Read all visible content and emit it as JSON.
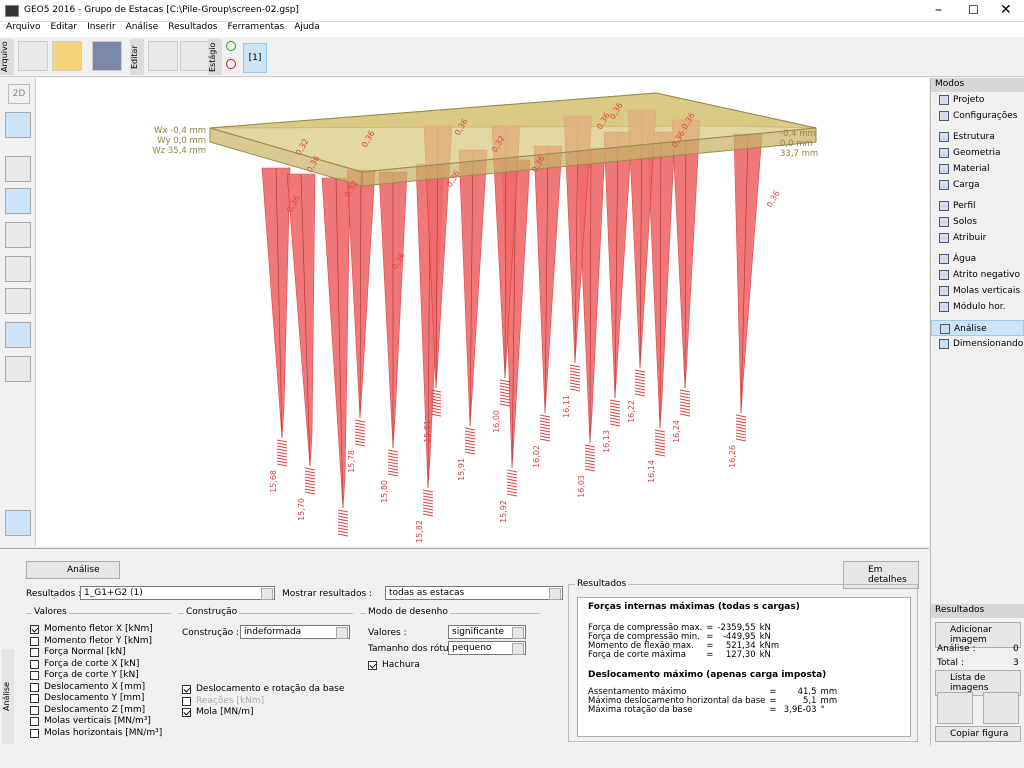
{
  "window": {
    "title": "GEO5 2016 - Grupo de Estacas [C:\\Pile-Group\\screen-02.gsp]"
  },
  "menu": [
    "Arquivo",
    "Editar",
    "Inserir",
    "Análise",
    "Resultados",
    "Ferramentas",
    "Ajuda"
  ],
  "toolbar": {
    "file_group": "Arquivo",
    "edit_group": "Editar",
    "stage_group": "Estágio",
    "stage": "[1]"
  },
  "left_toolbar": {
    "view_2d": "2D"
  },
  "viewport": {
    "left_deformation": [
      "Wx -0,4 mm",
      "Wy 0,0 mm",
      "Wz 35,4 mm"
    ],
    "right_deformation": [
      "-0,4 mm",
      "0,0 mm",
      "33,7 mm"
    ],
    "moment_labels": [
      "0,36",
      "0,32",
      "0,36",
      "0,32",
      "0,36",
      "0,36",
      "0,36",
      "0,36",
      "0,32",
      "0,36",
      "0,36",
      "0,36",
      "0,36",
      "0,36",
      "0,36"
    ],
    "spring_labels": [
      "15,68",
      "15,70",
      "15,78",
      "15,80",
      "15,82",
      "15,81",
      "15,91",
      "15,92",
      "16,00",
      "16,02",
      "16,03",
      "16,11",
      "16,13",
      "16,14",
      "16,22",
      "16,24",
      "16,26"
    ]
  },
  "modes": {
    "title": "Modos",
    "items": [
      {
        "label": "Projeto"
      },
      {
        "label": "Configurações"
      },
      {
        "label": "Estrutura"
      },
      {
        "label": "Geometria"
      },
      {
        "label": "Material"
      },
      {
        "label": "Carga"
      },
      {
        "label": "Perfil"
      },
      {
        "label": "Solos"
      },
      {
        "label": "Atribuir"
      },
      {
        "label": "Água"
      },
      {
        "label": "Atrito negativo"
      },
      {
        "label": "Molas verticais"
      },
      {
        "label": "Módulo hor."
      },
      {
        "label": "Análise",
        "active": true
      },
      {
        "label": "Dimensionando"
      }
    ]
  },
  "results_panel": {
    "title": "Resultados",
    "add_image": "Adicionar imagem",
    "analysis_label": "Análise :",
    "analysis_count": "0",
    "total_label": "Total :",
    "total_count": "3",
    "image_list": "Lista de imagens",
    "copy": "Copiar figura"
  },
  "bottom": {
    "side_tab": "Análise",
    "analyze_button": "Análise",
    "details_button": "Em detalhes",
    "results_label": "Resultados :",
    "results_value": "1_G1+G2 (1)",
    "show_label": "Mostrar resultados :",
    "show_value": "todas as estacas",
    "values_group": {
      "title": "Valores",
      "items": [
        {
          "label": "Momento fletor X [kNm]",
          "checked": true
        },
        {
          "label": "Momento fletor Y [kNm]",
          "checked": false
        },
        {
          "label": "Força Normal [kN]",
          "checked": false
        },
        {
          "label": "Força de corte X [kN]",
          "checked": false
        },
        {
          "label": "Força de corte Y [kN]",
          "checked": false
        },
        {
          "label": "Deslocamento X [mm]",
          "checked": false
        },
        {
          "label": "Deslocamento Y [mm]",
          "checked": false
        },
        {
          "label": "Deslocamento Z [mm]",
          "checked": false
        },
        {
          "label": "Molas verticais [MN/m³]",
          "checked": false
        },
        {
          "label": "Molas horizontais [MN/m³]",
          "checked": false
        }
      ]
    },
    "construction_group": {
      "title": "Construção",
      "construction_label": "Construção :",
      "construction_value": "indeformada",
      "options": [
        {
          "label": "Deslocamento e rotação da base",
          "checked": true,
          "enabled": true
        },
        {
          "label": "Reações [kNm]",
          "checked": false,
          "enabled": false
        },
        {
          "label": "Mola [MN/m]",
          "checked": true,
          "enabled": true
        }
      ]
    },
    "drawing_group": {
      "title": "Modo de desenho",
      "values_label": "Valores :",
      "values_value": "significante",
      "size_label": "Tamanho dos rótulos :",
      "size_value": "pequeno",
      "hatch": {
        "label": "Hachura",
        "checked": true
      }
    },
    "results_box": {
      "title": "Resultados",
      "forces_title": "Forças internas máximas (todas s cargas)",
      "forces": [
        [
          "Força de compressão max.",
          "=",
          "-2359,55",
          "kN"
        ],
        [
          "Força de compressão min.",
          "=",
          "-449,95",
          "kN"
        ],
        [
          "Momento de flexão max.",
          "=",
          "521,34",
          "kNm"
        ],
        [
          "Força de corte máxima",
          "=",
          "127,30",
          "kN"
        ]
      ],
      "displacement_title": "Deslocamento máximo (apenas carga imposta)",
      "displacements": [
        [
          "Assentamento máximo",
          "=",
          "41,5",
          "mm"
        ],
        [
          "Máximo deslocamento horizontal da base",
          "=",
          "5,1",
          "mm"
        ],
        [
          "Máxima rotação da base",
          "=",
          "3,9E-03",
          "°"
        ]
      ]
    }
  }
}
